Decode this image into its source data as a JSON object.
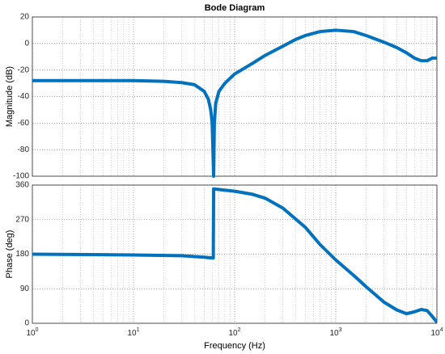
{
  "chart_data": [
    {
      "type": "line",
      "title": "Bode Diagram",
      "ylabel": "Magnitude (dB)",
      "xscale": "log",
      "grid": true,
      "minor_grid": true,
      "xlim": [
        1,
        10000
      ],
      "xticks": [
        1,
        10,
        100,
        1000,
        10000
      ],
      "ylim": [
        -100,
        20
      ],
      "yticks": [
        -100,
        -80,
        -60,
        -40,
        -20,
        0,
        20
      ],
      "color": "#0072bd",
      "x": [
        1,
        2,
        5,
        10,
        20,
        30,
        40,
        50,
        55,
        58,
        60,
        62,
        63,
        65,
        70,
        80,
        100,
        150,
        200,
        300,
        400,
        500,
        700,
        1000,
        1500,
        2000,
        3000,
        4000,
        5000,
        6000,
        7000,
        8000,
        9000,
        10000
      ],
      "values": [
        -28,
        -28,
        -28,
        -28,
        -28.5,
        -29.5,
        -31,
        -36,
        -42,
        -50,
        -60,
        -100,
        -60,
        -45,
        -36,
        -30,
        -23,
        -15,
        -9,
        -2,
        3,
        6,
        9,
        10,
        9,
        6,
        1,
        -3,
        -7,
        -11,
        -13,
        -13,
        -11,
        -11
      ]
    },
    {
      "type": "line",
      "ylabel": "Phase (deg)",
      "xlabel": "Frequency  (Hz)",
      "xscale": "log",
      "grid": true,
      "minor_grid": true,
      "xlim": [
        1,
        10000
      ],
      "xticks": [
        {
          "value": 1,
          "label": "10^0"
        },
        {
          "value": 10,
          "label": "10^1"
        },
        {
          "value": 100,
          "label": "10^2"
        },
        {
          "value": 1000,
          "label": "10^3"
        },
        {
          "value": 10000,
          "label": "10^4"
        }
      ],
      "ylim": [
        0,
        360
      ],
      "yticks": [
        0,
        90,
        180,
        270,
        360
      ],
      "color": "#0072bd",
      "x": [
        1,
        10,
        30,
        50,
        61.5,
        62,
        100,
        150,
        200,
        300,
        500,
        700,
        1000,
        1500,
        2000,
        3000,
        4000,
        5000,
        6000,
        7000,
        8000,
        9000,
        10000
      ],
      "values": [
        180,
        178,
        176,
        172,
        170,
        350,
        344,
        336,
        326,
        300,
        250,
        205,
        165,
        125,
        95,
        55,
        35,
        25,
        30,
        36,
        33,
        18,
        3
      ]
    }
  ]
}
